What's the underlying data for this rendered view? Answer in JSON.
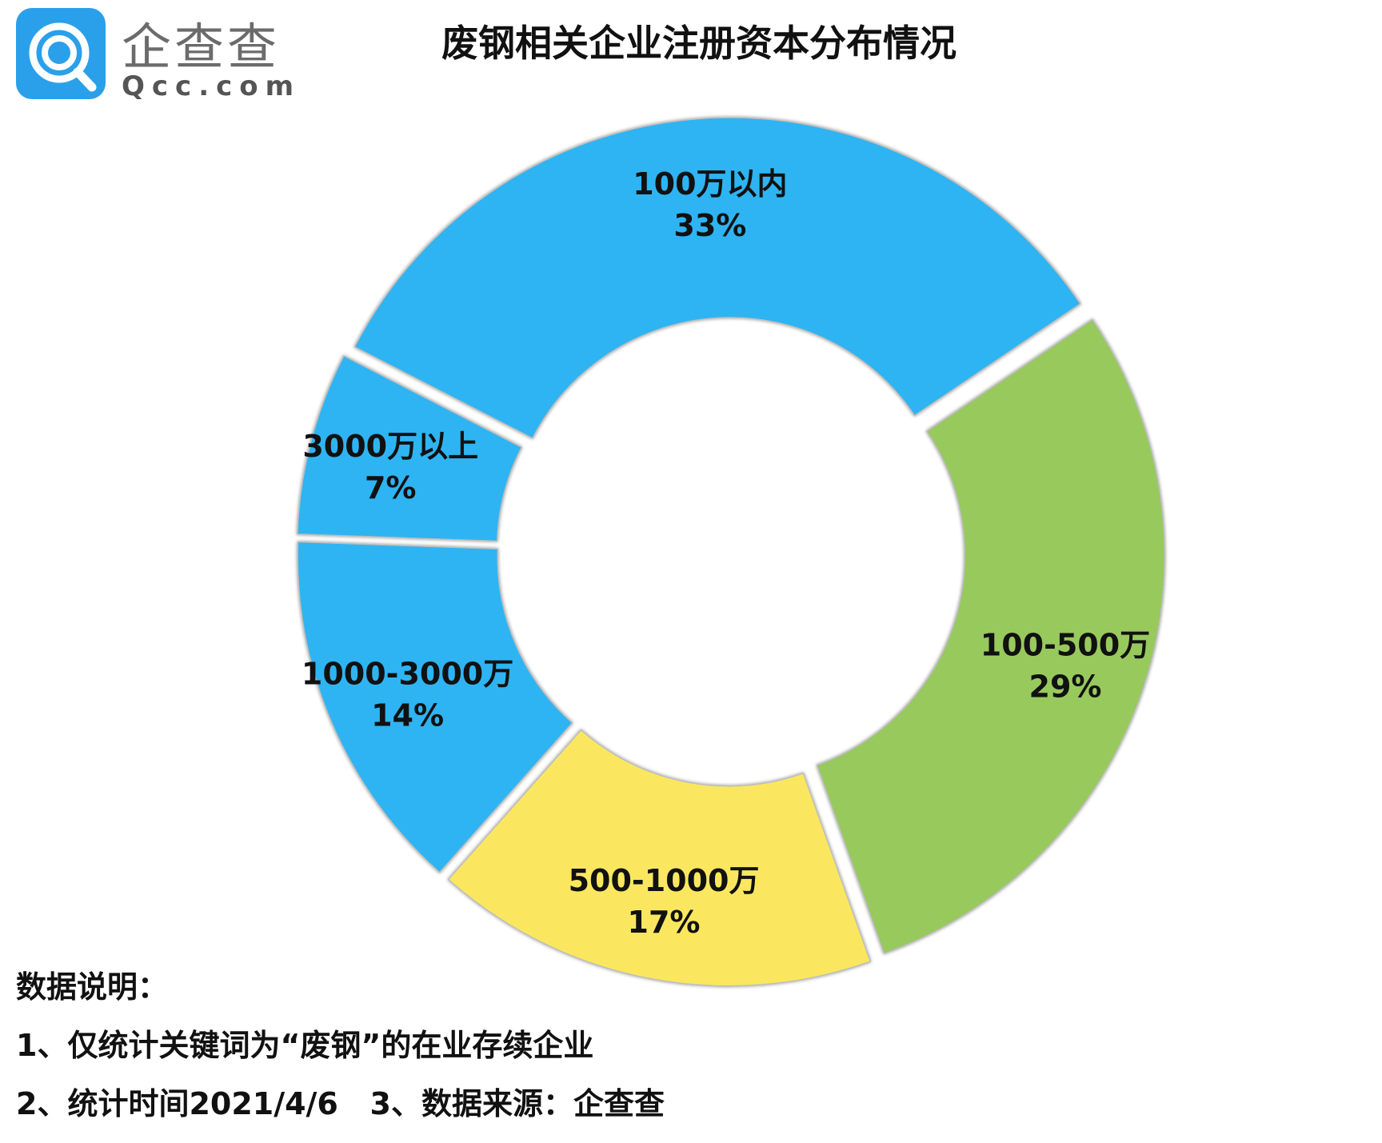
{
  "logo": {
    "name": "企查查",
    "domain": "Qcc.com"
  },
  "chart_data": {
    "type": "pie",
    "title": "废钢相关企业注册资本分布情况",
    "start_angle_deg": -34,
    "slices": [
      {
        "label": "100-500万",
        "value": 29,
        "display": "29%",
        "color": "#98c95d"
      },
      {
        "label": "500-1000万",
        "value": 17,
        "display": "17%",
        "color": "#fbe75e"
      },
      {
        "label": "1000-3000万",
        "value": 14,
        "display": "14%",
        "color": "#2db4f2"
      },
      {
        "label": "3000万以上",
        "value": 7,
        "display": "7%",
        "color": "#2db4f2"
      },
      {
        "label": "100万以内",
        "value": 33,
        "display": "33%",
        "color": "#2db4f2"
      }
    ]
  },
  "notes": {
    "heading": "数据说明：",
    "line1": "1、仅统计关键词为“废钢”的在业存续企业",
    "line2": "2、统计时间2021/4/6   3、数据来源：企查查"
  }
}
